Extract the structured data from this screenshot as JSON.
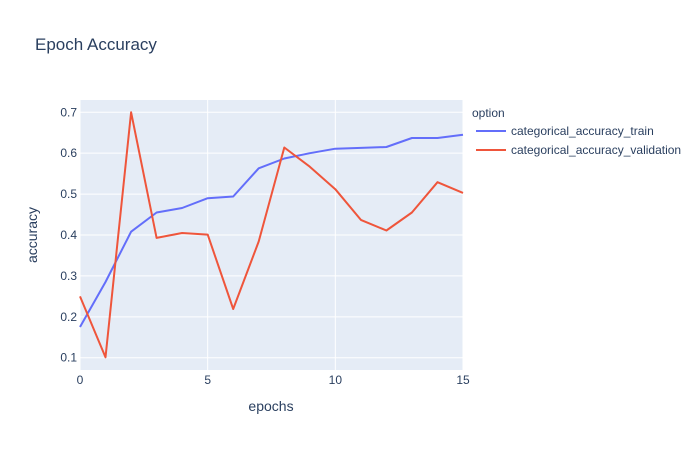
{
  "chart_data": {
    "type": "line",
    "title": "Epoch Accuracy",
    "xlabel": "epochs",
    "ylabel": "accuracy",
    "xlim": [
      0,
      15
    ],
    "ylim": [
      0.07,
      0.73
    ],
    "x_ticks": [
      0,
      5,
      10,
      15
    ],
    "y_ticks": [
      0.1,
      0.2,
      0.3,
      0.4,
      0.5,
      0.6,
      0.7
    ],
    "grid": true,
    "plot_background": "#e5ecf6",
    "legend": {
      "title": "option",
      "placement": "right"
    },
    "x": [
      0,
      1,
      2,
      3,
      4,
      5,
      6,
      7,
      8,
      9,
      10,
      11,
      12,
      13,
      14,
      15
    ],
    "series": [
      {
        "name": "categorical_accuracy_train",
        "color": "#636efa",
        "values": [
          0.175,
          0.285,
          0.408,
          0.455,
          0.466,
          0.49,
          0.494,
          0.563,
          0.587,
          0.6,
          0.611,
          0.613,
          0.615,
          0.637,
          0.637,
          0.645
        ]
      },
      {
        "name": "categorical_accuracy_validation",
        "color": "#ef553b",
        "values": [
          0.25,
          0.101,
          0.7,
          0.393,
          0.405,
          0.401,
          0.219,
          0.384,
          0.614,
          0.567,
          0.512,
          0.437,
          0.411,
          0.455,
          0.529,
          0.503
        ]
      }
    ]
  }
}
